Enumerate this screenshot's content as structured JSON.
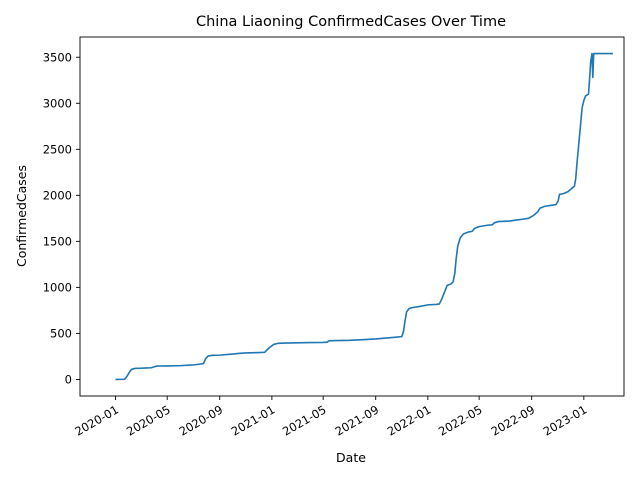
{
  "chart_data": {
    "type": "line",
    "title": "China Liaoning ConfirmedCases Over Time",
    "xlabel": "Date",
    "ylabel": "ConfirmedCases",
    "xlim": [
      "2019-10-10",
      "2023-04-05"
    ],
    "ylim": [
      -180,
      3720
    ],
    "x_ticks": [
      "2020-01-01",
      "2020-05-01",
      "2020-09-01",
      "2021-01-01",
      "2021-05-01",
      "2021-09-01",
      "2022-01-01",
      "2022-05-01",
      "2022-09-01",
      "2023-01-01"
    ],
    "x_tick_labels": [
      "2020-01",
      "2020-05",
      "2020-09",
      "2021-01",
      "2021-05",
      "2021-09",
      "2022-01",
      "2022-05",
      "2022-09",
      "2023-01"
    ],
    "y_ticks": [
      0,
      500,
      1000,
      1500,
      2000,
      2500,
      3000,
      3500
    ],
    "y_tick_labels": [
      "0",
      "500",
      "1000",
      "1500",
      "2000",
      "2500",
      "3000",
      "3500"
    ],
    "grid": false,
    "legend": "none",
    "series": [
      {
        "color": "#1f77b4",
        "points": [
          [
            "2020-01-01",
            0
          ],
          [
            "2020-01-22",
            2
          ],
          [
            "2020-01-26",
            20
          ],
          [
            "2020-01-30",
            50
          ],
          [
            "2020-02-04",
            90
          ],
          [
            "2020-02-08",
            110
          ],
          [
            "2020-02-14",
            118
          ],
          [
            "2020-02-20",
            121
          ],
          [
            "2020-03-01",
            122
          ],
          [
            "2020-03-15",
            125
          ],
          [
            "2020-03-25",
            127
          ],
          [
            "2020-04-01",
            138
          ],
          [
            "2020-04-07",
            145
          ],
          [
            "2020-04-15",
            146
          ],
          [
            "2020-05-01",
            147
          ],
          [
            "2020-06-01",
            150
          ],
          [
            "2020-07-01",
            158
          ],
          [
            "2020-07-15",
            165
          ],
          [
            "2020-07-25",
            172
          ],
          [
            "2020-07-30",
            225
          ],
          [
            "2020-08-05",
            255
          ],
          [
            "2020-08-15",
            262
          ],
          [
            "2020-09-01",
            264
          ],
          [
            "2020-10-01",
            276
          ],
          [
            "2020-10-15",
            282
          ],
          [
            "2020-11-01",
            288
          ],
          [
            "2020-12-01",
            292
          ],
          [
            "2020-12-15",
            295
          ],
          [
            "2020-12-25",
            340
          ],
          [
            "2021-01-05",
            380
          ],
          [
            "2021-01-15",
            392
          ],
          [
            "2021-02-01",
            395
          ],
          [
            "2021-03-01",
            398
          ],
          [
            "2021-04-01",
            400
          ],
          [
            "2021-05-01",
            402
          ],
          [
            "2021-05-10",
            405
          ],
          [
            "2021-05-15",
            420
          ],
          [
            "2021-06-01",
            422
          ],
          [
            "2021-07-01",
            425
          ],
          [
            "2021-08-01",
            432
          ],
          [
            "2021-09-01",
            440
          ],
          [
            "2021-10-01",
            452
          ],
          [
            "2021-10-25",
            462
          ],
          [
            "2021-11-01",
            465
          ],
          [
            "2021-11-05",
            520
          ],
          [
            "2021-11-08",
            620
          ],
          [
            "2021-11-12",
            730
          ],
          [
            "2021-11-18",
            770
          ],
          [
            "2021-11-25",
            780
          ],
          [
            "2021-12-10",
            790
          ],
          [
            "2022-01-01",
            810
          ],
          [
            "2022-01-20",
            815
          ],
          [
            "2022-01-28",
            820
          ],
          [
            "2022-02-03",
            880
          ],
          [
            "2022-02-10",
            960
          ],
          [
            "2022-02-15",
            1020
          ],
          [
            "2022-02-25",
            1040
          ],
          [
            "2022-03-01",
            1060
          ],
          [
            "2022-03-05",
            1150
          ],
          [
            "2022-03-08",
            1300
          ],
          [
            "2022-03-12",
            1450
          ],
          [
            "2022-03-18",
            1540
          ],
          [
            "2022-03-25",
            1580
          ],
          [
            "2022-04-05",
            1600
          ],
          [
            "2022-04-15",
            1610
          ],
          [
            "2022-04-20",
            1640
          ],
          [
            "2022-05-01",
            1660
          ],
          [
            "2022-05-20",
            1675
          ],
          [
            "2022-06-01",
            1680
          ],
          [
            "2022-06-05",
            1700
          ],
          [
            "2022-06-15",
            1715
          ],
          [
            "2022-07-10",
            1720
          ],
          [
            "2022-07-25",
            1730
          ],
          [
            "2022-08-10",
            1740
          ],
          [
            "2022-08-25",
            1750
          ],
          [
            "2022-09-05",
            1780
          ],
          [
            "2022-09-15",
            1820
          ],
          [
            "2022-09-20",
            1860
          ],
          [
            "2022-10-01",
            1880
          ],
          [
            "2022-10-15",
            1890
          ],
          [
            "2022-10-28",
            1900
          ],
          [
            "2022-11-02",
            1940
          ],
          [
            "2022-11-05",
            2010
          ],
          [
            "2022-11-15",
            2020
          ],
          [
            "2022-11-25",
            2040
          ],
          [
            "2022-12-05",
            2080
          ],
          [
            "2022-12-10",
            2100
          ],
          [
            "2022-12-13",
            2180
          ],
          [
            "2022-12-16",
            2350
          ],
          [
            "2022-12-19",
            2500
          ],
          [
            "2022-12-22",
            2650
          ],
          [
            "2022-12-25",
            2800
          ],
          [
            "2022-12-28",
            2950
          ],
          [
            "2023-01-01",
            3030
          ],
          [
            "2023-01-05",
            3080
          ],
          [
            "2023-01-12",
            3100
          ],
          [
            "2023-01-15",
            3300
          ],
          [
            "2023-01-17",
            3450
          ],
          [
            "2023-01-20",
            3540
          ],
          [
            "2023-01-22",
            3280
          ],
          [
            "2023-01-24",
            3540
          ],
          [
            "2023-03-10",
            3540
          ]
        ]
      }
    ]
  }
}
